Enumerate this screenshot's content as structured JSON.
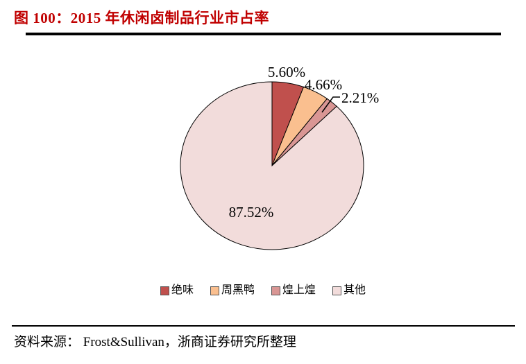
{
  "header": {
    "title": "图 100：2015 年休闲卤制品行业市占率",
    "accent_color": "#C00000"
  },
  "chart_data": {
    "type": "pie",
    "title": "2015 年休闲卤制品行业市占率",
    "start_angle_deg": 0,
    "direction": "clockwise",
    "legend_position": "bottom",
    "slices": [
      {
        "label": "绝味",
        "value": 5.6,
        "display": "5.60%",
        "color": "#C0504D"
      },
      {
        "label": "周黑鸭",
        "value": 4.66,
        "display": "4.66%",
        "color": "#FABF8F"
      },
      {
        "label": "煌上煌",
        "value": 2.21,
        "display": "2.21%",
        "color": "#D99694"
      },
      {
        "label": "其他",
        "value": 87.52,
        "display": "87.52%",
        "color": "#F2DCDB"
      }
    ],
    "outline_color": "#000000"
  },
  "footer": {
    "source": "资料来源： Frost&Sullivan，浙商证券研究所整理"
  }
}
